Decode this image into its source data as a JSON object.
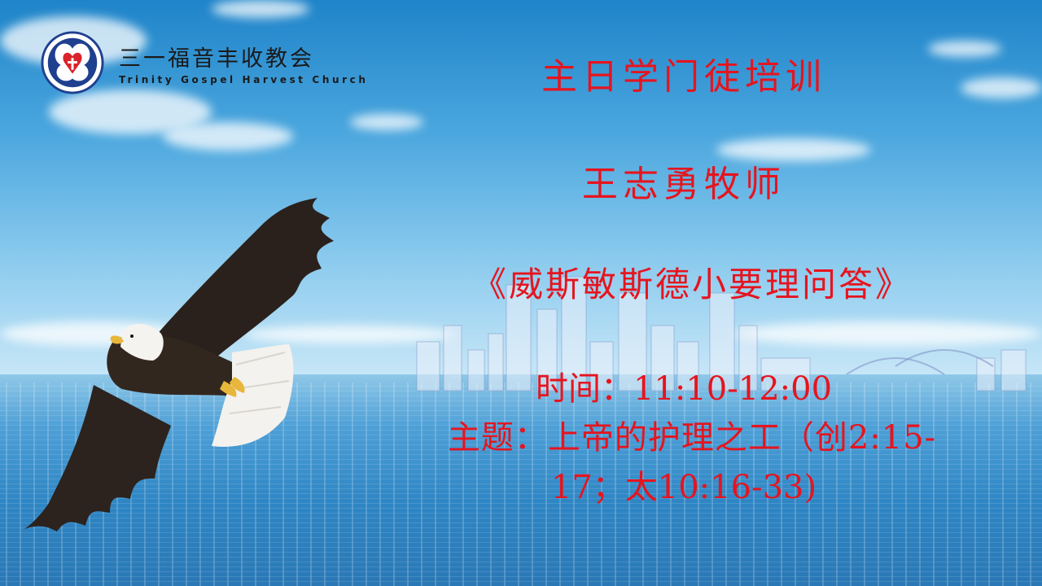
{
  "organization": {
    "name_cn": "三一福音丰收教会",
    "name_en": "Trinity Gospel Harvest Church"
  },
  "slide": {
    "title": "主日学门徒培训",
    "pastor": "王志勇牧师",
    "book": "《威斯敏斯德小要理问答》",
    "time_line": "时间：11:10-12:00",
    "topic_line1": "主题：上帝的护理之工（创2:15-",
    "topic_line2": "17；太10:16-33)"
  },
  "colors": {
    "text_red": "#e6141e",
    "logo_blue": "#1f3f8f",
    "logo_red": "#d8232a"
  },
  "icons": [
    "church-logo-icon",
    "eagle-illustration"
  ]
}
